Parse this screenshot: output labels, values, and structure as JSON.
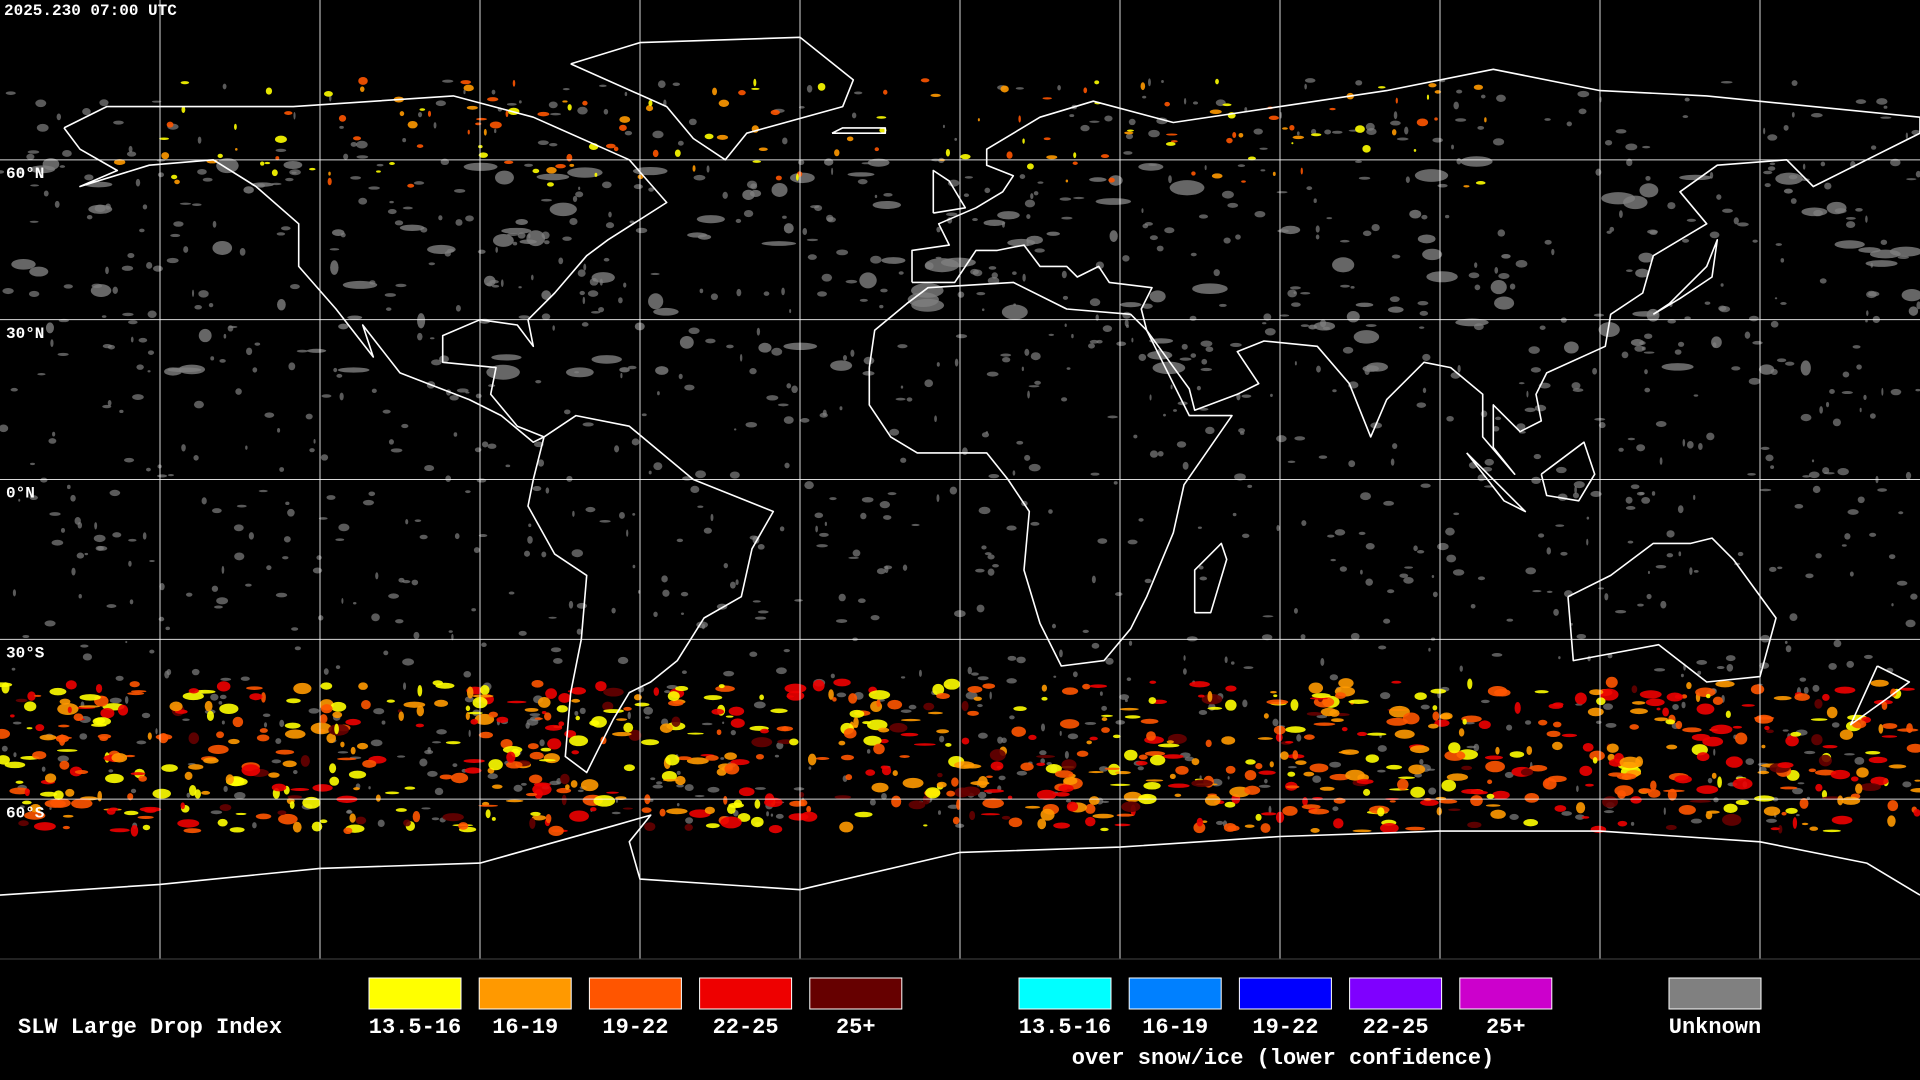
{
  "header": {
    "timestamp": "2025.230 07:00 UTC"
  },
  "map": {
    "latitude_labels": [
      "60°N",
      "30°N",
      "0°N",
      "30°S",
      "60°S"
    ]
  },
  "legend": {
    "title": "SLW Large Drop Index",
    "items": [
      {
        "label": "13.5-16",
        "color": "#ffff00"
      },
      {
        "label": "16-19",
        "color": "#ff9900"
      },
      {
        "label": "19-22",
        "color": "#ff5500"
      },
      {
        "label": "22-25",
        "color": "#ee0000"
      },
      {
        "label": "25+",
        "color": "#660000"
      }
    ],
    "snow_ice_items": [
      {
        "label": "13.5-16",
        "color": "#00ffff"
      },
      {
        "label": "16-19",
        "color": "#0080ff"
      },
      {
        "label": "19-22",
        "color": "#0000ff"
      },
      {
        "label": "22-25",
        "color": "#7f00ff"
      },
      {
        "label": "25+",
        "color": "#cc00cc"
      }
    ],
    "snow_ice_caption": "over snow/ice (lower confidence)",
    "unknown": {
      "label": "Unknown",
      "color": "#808080"
    }
  }
}
